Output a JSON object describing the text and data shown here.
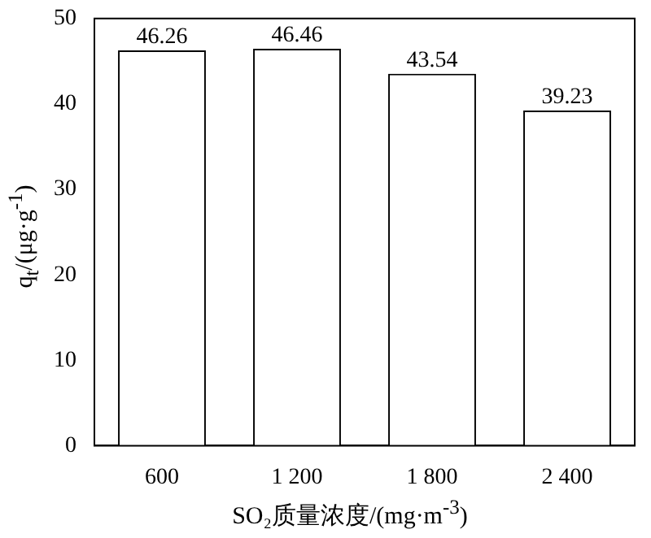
{
  "chart_data": {
    "type": "bar",
    "xlabel": "SO₂质量浓度/(mg·m$^{-3}$)",
    "ylabel": "q$_{t}$/(μg·g$^{-1}$)",
    "categories": [
      "600",
      "1 200",
      "1 800",
      "2 400"
    ],
    "values": [
      46.26,
      46.46,
      43.54,
      39.23
    ],
    "color": "#ffffff",
    "ylim": [
      0,
      50
    ],
    "yticks": [
      0,
      10,
      20,
      30,
      40,
      50
    ],
    "grid": false,
    "legend": false,
    "data_labels": true
  }
}
